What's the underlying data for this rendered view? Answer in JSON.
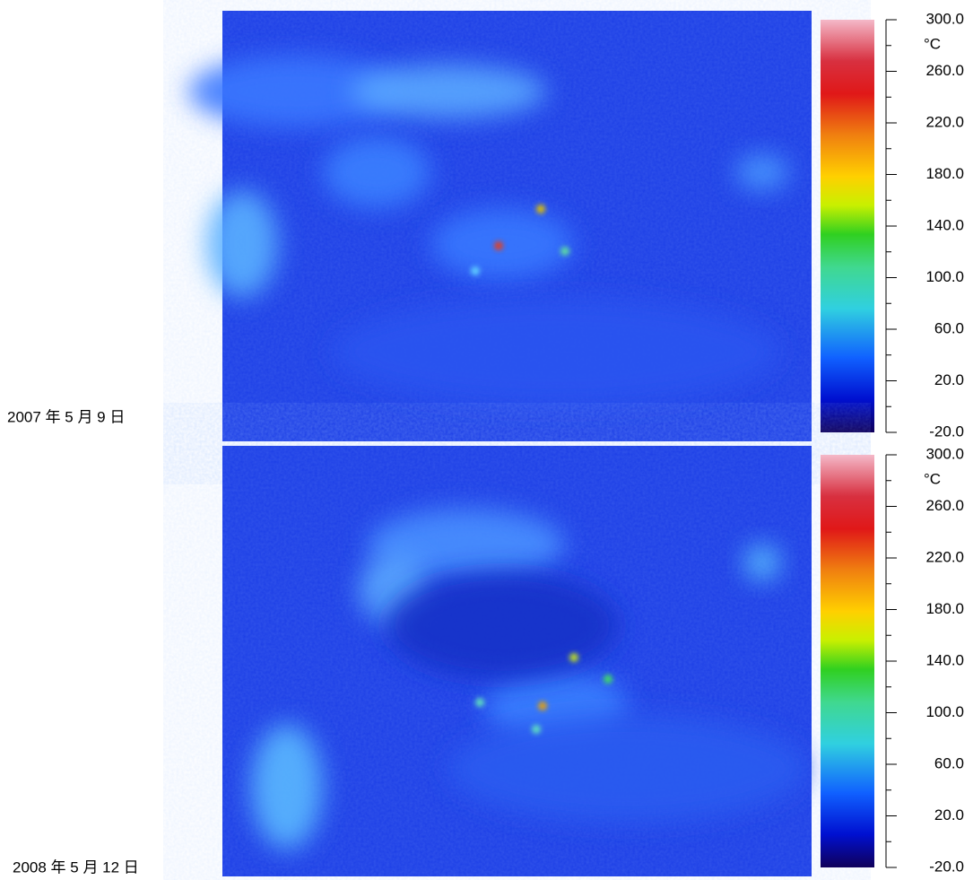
{
  "panels": [
    {
      "date": "2007 年 5 月 9 日",
      "unit": "°C",
      "ticks": [
        {
          "value": 300,
          "label": "300.0"
        },
        {
          "value": 260,
          "label": "260.0"
        },
        {
          "value": 220,
          "label": "220.0"
        },
        {
          "value": 180,
          "label": "180.0"
        },
        {
          "value": 140,
          "label": "140.0"
        },
        {
          "value": 100,
          "label": "100.0"
        },
        {
          "value": 60,
          "label": "60.0"
        },
        {
          "value": 20,
          "label": "20.0"
        },
        {
          "value": -20,
          "label": "-20.0"
        }
      ]
    },
    {
      "date": "2008 年 5 月 12 日",
      "unit": "°C",
      "ticks": [
        {
          "value": 300,
          "label": "300.0"
        },
        {
          "value": 260,
          "label": "260.0"
        },
        {
          "value": 220,
          "label": "220.0"
        },
        {
          "value": 180,
          "label": "180.0"
        },
        {
          "value": 140,
          "label": "140.0"
        },
        {
          "value": 100,
          "label": "100.0"
        },
        {
          "value": 60,
          "label": "60.0"
        },
        {
          "value": 20,
          "label": "20.0"
        },
        {
          "value": -20,
          "label": "-20.0"
        }
      ]
    }
  ]
}
